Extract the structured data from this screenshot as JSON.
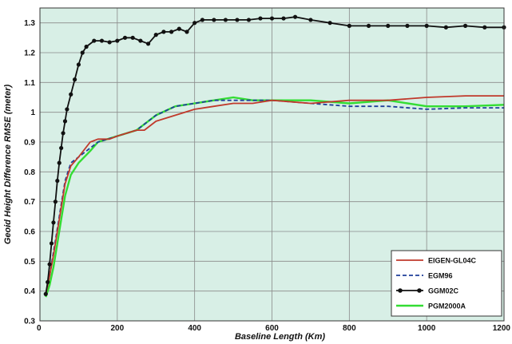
{
  "chart_data": {
    "type": "line",
    "title": "",
    "xlabel": "Baseline Length (Km)",
    "ylabel": "Geoid Height Difference RMSE (meter)",
    "xlim": [
      0,
      1200
    ],
    "ylim": [
      0.3,
      1.35
    ],
    "xticks": [
      0,
      200,
      400,
      600,
      800,
      1000,
      1200
    ],
    "yticks": [
      0.3,
      0.4,
      0.5,
      0.6,
      0.7,
      0.8,
      0.9,
      1,
      1.1,
      1.2,
      1.3
    ],
    "grid": true,
    "background_color": "#d8efe6",
    "legend_position": "bottom-right",
    "series": [
      {
        "name": "EIGEN-GL04C",
        "color": "#c0392b",
        "style": "solid",
        "marker": "none",
        "x": [
          15,
          25,
          35,
          45,
          55,
          65,
          80,
          100,
          130,
          150,
          180,
          200,
          250,
          270,
          300,
          350,
          400,
          450,
          500,
          550,
          600,
          700,
          800,
          900,
          1000,
          1100,
          1200
        ],
        "y": [
          0.39,
          0.45,
          0.52,
          0.6,
          0.68,
          0.76,
          0.82,
          0.85,
          0.9,
          0.91,
          0.91,
          0.92,
          0.94,
          0.94,
          0.97,
          0.99,
          1.01,
          1.02,
          1.03,
          1.03,
          1.04,
          1.03,
          1.04,
          1.04,
          1.05,
          1.055,
          1.055
        ]
      },
      {
        "name": "EGM96",
        "color": "#1f3f9a",
        "style": "dashed",
        "marker": "none",
        "x": [
          15,
          25,
          35,
          45,
          55,
          65,
          80,
          100,
          130,
          150,
          200,
          250,
          300,
          350,
          400,
          450,
          500,
          550,
          600,
          700,
          800,
          900,
          1000,
          1100,
          1200
        ],
        "y": [
          0.39,
          0.45,
          0.53,
          0.61,
          0.69,
          0.77,
          0.83,
          0.85,
          0.88,
          0.9,
          0.92,
          0.94,
          0.99,
          1.02,
          1.03,
          1.04,
          1.04,
          1.04,
          1.04,
          1.03,
          1.02,
          1.02,
          1.01,
          1.015,
          1.015
        ]
      },
      {
        "name": "GGM02C",
        "color": "#111111",
        "style": "solid",
        "marker": "circle",
        "x": [
          15,
          20,
          25,
          30,
          35,
          40,
          45,
          50,
          55,
          60,
          65,
          70,
          80,
          90,
          100,
          110,
          120,
          140,
          160,
          180,
          200,
          220,
          240,
          260,
          280,
          300,
          320,
          340,
          360,
          380,
          400,
          420,
          450,
          480,
          510,
          540,
          570,
          600,
          630,
          660,
          700,
          750,
          800,
          850,
          900,
          950,
          1000,
          1050,
          1100,
          1150,
          1200
        ],
        "y": [
          0.39,
          0.43,
          0.49,
          0.56,
          0.63,
          0.7,
          0.77,
          0.83,
          0.88,
          0.93,
          0.97,
          1.01,
          1.06,
          1.11,
          1.16,
          1.2,
          1.22,
          1.24,
          1.24,
          1.235,
          1.24,
          1.25,
          1.25,
          1.24,
          1.23,
          1.26,
          1.27,
          1.27,
          1.28,
          1.27,
          1.3,
          1.31,
          1.31,
          1.31,
          1.31,
          1.31,
          1.315,
          1.315,
          1.315,
          1.32,
          1.31,
          1.3,
          1.29,
          1.29,
          1.29,
          1.29,
          1.29,
          1.285,
          1.29,
          1.285,
          1.285
        ]
      },
      {
        "name": "PGM2000A",
        "color": "#33dd33",
        "style": "solid",
        "marker": "none",
        "x": [
          15,
          25,
          35,
          45,
          55,
          65,
          80,
          100,
          130,
          150,
          200,
          250,
          300,
          350,
          400,
          450,
          500,
          550,
          600,
          700,
          800,
          900,
          1000,
          1100,
          1200
        ],
        "y": [
          0.38,
          0.42,
          0.48,
          0.56,
          0.64,
          0.72,
          0.79,
          0.83,
          0.87,
          0.9,
          0.92,
          0.94,
          0.99,
          1.02,
          1.03,
          1.04,
          1.05,
          1.04,
          1.04,
          1.04,
          1.03,
          1.04,
          1.02,
          1.02,
          1.025
        ]
      }
    ]
  }
}
